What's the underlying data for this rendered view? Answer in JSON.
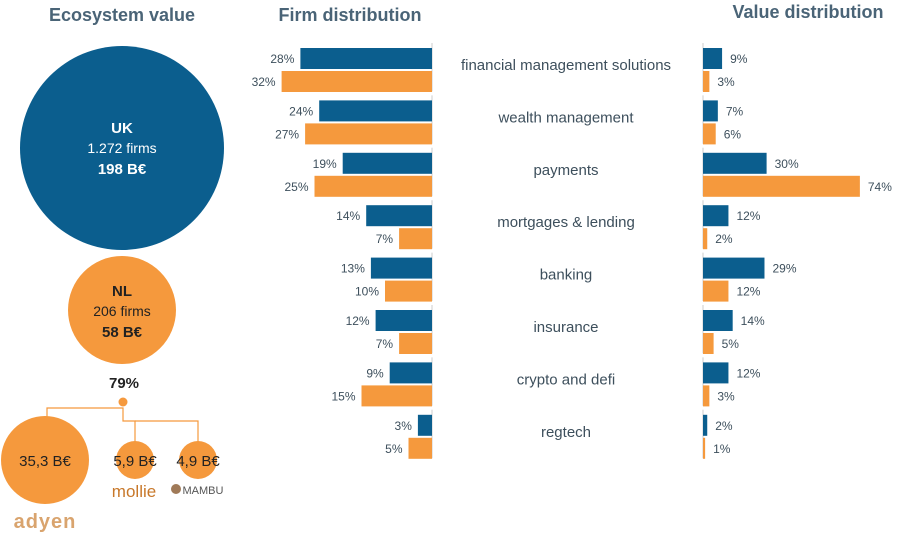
{
  "colors": {
    "uk": "#0b5e8e",
    "nl": "#f5993d",
    "title": "#4a6477",
    "text": "#3d4f5c",
    "logo": "#d9a46e"
  },
  "ecosystem": {
    "title": "Ecosystem value",
    "uk": {
      "name": "UK",
      "firms": "1.272 firms",
      "value": "198 B€"
    },
    "nl": {
      "name": "NL",
      "firms": "206 firms",
      "value": "58 B€"
    },
    "share": "79%",
    "companies": [
      {
        "value": "35,3 B€",
        "logo": "adyen"
      },
      {
        "value": "5,9 B€",
        "logo": "mollie"
      },
      {
        "value": "4,9 B€",
        "logo": "MAMBU"
      }
    ]
  },
  "chart_data": [
    {
      "type": "bar",
      "title": "Firm distribution",
      "orientation": "horizontal",
      "direction": "right-to-left",
      "categories": [
        "financial management solutions",
        "wealth management",
        "payments",
        "mortgages & lending",
        "banking",
        "insurance",
        "crypto and defi",
        "regtech"
      ],
      "series": [
        {
          "values": [
            28,
            24,
            19,
            14,
            13,
            12,
            9,
            3
          ],
          "color": "#0b5e8e"
        },
        {
          "values": [
            32,
            27,
            25,
            7,
            10,
            7,
            15,
            5
          ],
          "color": "#f5993d"
        }
      ],
      "unit": "%"
    },
    {
      "type": "bar",
      "title": "Value distribution",
      "orientation": "horizontal",
      "categories": [
        "financial management solutions",
        "wealth management",
        "payments",
        "mortgages & lending",
        "banking",
        "insurance",
        "crypto and defi",
        "regtech"
      ],
      "series": [
        {
          "values": [
            9,
            7,
            30,
            12,
            29,
            14,
            12,
            2
          ],
          "color": "#0b5e8e"
        },
        {
          "values": [
            3,
            6,
            74,
            2,
            12,
            5,
            3,
            1
          ],
          "color": "#f5993d"
        }
      ],
      "unit": "%"
    }
  ]
}
